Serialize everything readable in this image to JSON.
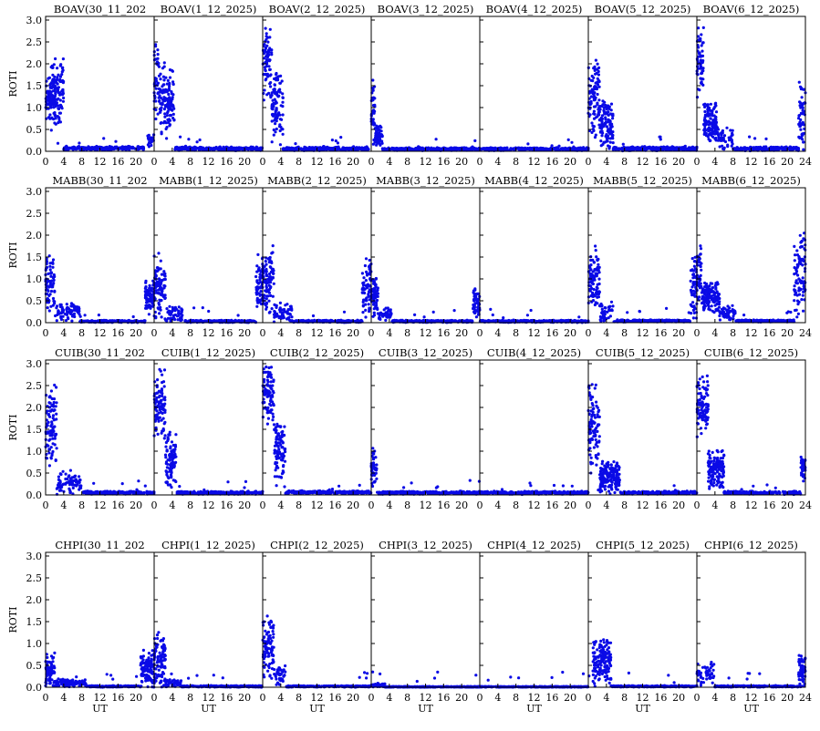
{
  "figure": {
    "ylabel": "ROTI",
    "xlabel": "UT",
    "marker_color": "#0a0ae6",
    "axis_color": "#000000"
  },
  "chart_data": {
    "type": "scatter",
    "xlim": [
      0,
      24
    ],
    "ylim": [
      0,
      3
    ],
    "x_ticks": [
      0,
      4,
      8,
      12,
      16,
      20,
      24
    ],
    "y_ticks": [
      0.0,
      0.5,
      1.0,
      1.5,
      2.0,
      2.5,
      3.0
    ],
    "y_tick_labels": [
      "0.0",
      "0.5",
      "1.0",
      "1.5",
      "2.0",
      "2.5",
      "3.0"
    ],
    "rows": [
      {
        "station": "BOAV",
        "panels": [
          {
            "title": "BOAV(30_11_202",
            "pattern": [
              [
                0.0,
                2.2,
                1.2,
                0.6
              ],
              [
                1.2,
                4.0,
                1.3,
                0.9
              ],
              [
                4.0,
                22.0,
                0.07,
                0.05
              ],
              [
                22.5,
                24.0,
                0.2,
                0.2
              ]
            ]
          },
          {
            "title": "BOAV(1_12_2025)",
            "pattern": [
              [
                0.0,
                1.0,
                1.6,
                1.0
              ],
              [
                1.0,
                4.5,
                1.2,
                0.9
              ],
              [
                4.5,
                24.0,
                0.06,
                0.05
              ]
            ]
          },
          {
            "title": "BOAV(2_12_2025)",
            "pattern": [
              [
                0.0,
                2.0,
                2.0,
                0.9
              ],
              [
                2.0,
                4.5,
                1.0,
                0.9
              ],
              [
                4.5,
                23.5,
                0.06,
                0.05
              ]
            ]
          },
          {
            "title": "BOAV(3_12_2025)",
            "pattern": [
              [
                0.0,
                0.8,
                1.1,
                0.7
              ],
              [
                0.8,
                2.5,
                0.35,
                0.3
              ],
              [
                2.5,
                24.0,
                0.05,
                0.04
              ]
            ]
          },
          {
            "title": "BOAV(4_12_2025)",
            "pattern": [
              [
                0.0,
                24.0,
                0.05,
                0.04
              ]
            ]
          },
          {
            "title": "BOAV(5_12_2025)",
            "pattern": [
              [
                0.0,
                2.5,
                1.2,
                1.0
              ],
              [
                2.5,
                5.5,
                0.6,
                0.6
              ],
              [
                5.5,
                24.0,
                0.06,
                0.05
              ]
            ]
          },
          {
            "title": "BOAV(6_12_2025)",
            "pattern": [
              [
                0.0,
                1.5,
                2.0,
                0.9
              ],
              [
                1.5,
                4.5,
                0.7,
                0.5
              ],
              [
                4.5,
                8.0,
                0.3,
                0.3
              ],
              [
                8.0,
                22.5,
                0.06,
                0.05
              ],
              [
                22.5,
                24.0,
                0.8,
                0.9
              ]
            ]
          }
        ]
      },
      {
        "station": "MABB",
        "panels": [
          {
            "title": "MABB(30_11_202",
            "pattern": [
              [
                0.0,
                2.0,
                0.9,
                0.7
              ],
              [
                2.0,
                7.5,
                0.25,
                0.25
              ],
              [
                7.5,
                22.0,
                0.03,
                0.03
              ],
              [
                22.0,
                24.0,
                0.6,
                0.4
              ]
            ]
          },
          {
            "title": "MABB(1_12_2025)",
            "pattern": [
              [
                0.0,
                2.5,
                0.8,
                0.8
              ],
              [
                2.5,
                6.5,
                0.2,
                0.2
              ],
              [
                6.5,
                22.5,
                0.03,
                0.03
              ],
              [
                22.5,
                24.0,
                0.9,
                0.7
              ]
            ]
          },
          {
            "title": "MABB(2_12_2025)",
            "pattern": [
              [
                0.0,
                2.5,
                1.0,
                0.8
              ],
              [
                2.5,
                6.5,
                0.25,
                0.25
              ],
              [
                6.5,
                22.0,
                0.03,
                0.03
              ],
              [
                22.0,
                24.0,
                0.8,
                0.7
              ]
            ]
          },
          {
            "title": "MABB(3_12_2025)",
            "pattern": [
              [
                0.0,
                1.5,
                0.6,
                0.5
              ],
              [
                1.5,
                4.5,
                0.2,
                0.15
              ],
              [
                4.5,
                22.5,
                0.03,
                0.03
              ],
              [
                22.5,
                24.0,
                0.5,
                0.4
              ]
            ]
          },
          {
            "title": "MABB(4_12_2025)",
            "pattern": [
              [
                0.0,
                24.0,
                0.03,
                0.03
              ]
            ]
          },
          {
            "title": "MABB(5_12_2025)",
            "pattern": [
              [
                0.0,
                2.5,
                1.0,
                0.8
              ],
              [
                2.5,
                5.5,
                0.3,
                0.3
              ],
              [
                5.5,
                22.5,
                0.04,
                0.03
              ],
              [
                22.5,
                24.0,
                0.8,
                0.8
              ]
            ]
          },
          {
            "title": "MABB(6_12_2025)",
            "pattern": [
              [
                0.0,
                1.0,
                1.2,
                0.8
              ],
              [
                1.0,
                5.0,
                0.6,
                0.4
              ],
              [
                5.0,
                8.5,
                0.2,
                0.2
              ],
              [
                8.5,
                21.5,
                0.04,
                0.03
              ],
              [
                21.5,
                24.0,
                1.2,
                1.2
              ]
            ]
          }
        ]
      },
      {
        "station": "CUIB",
        "panels": [
          {
            "title": "CUIB(30_11_202",
            "pattern": [
              [
                0.0,
                2.5,
                1.6,
                1.0
              ],
              [
                2.5,
                8.0,
                0.3,
                0.3
              ],
              [
                8.0,
                24.0,
                0.05,
                0.04
              ]
            ]
          },
          {
            "title": "CUIB(1_12_2025)",
            "pattern": [
              [
                0.0,
                2.5,
                2.0,
                0.9
              ],
              [
                2.5,
                5.0,
                0.8,
                0.7
              ],
              [
                5.0,
                24.0,
                0.05,
                0.04
              ]
            ]
          },
          {
            "title": "CUIB(2_12_2025)",
            "pattern": [
              [
                0.0,
                2.5,
                2.3,
                0.7
              ],
              [
                2.5,
                5.0,
                1.0,
                0.8
              ],
              [
                5.0,
                24.0,
                0.06,
                0.04
              ]
            ]
          },
          {
            "title": "CUIB(3_12_2025)",
            "pattern": [
              [
                0.0,
                1.2,
                0.6,
                0.5
              ],
              [
                1.2,
                24.0,
                0.05,
                0.04
              ]
            ]
          },
          {
            "title": "CUIB(4_12_2025)",
            "pattern": [
              [
                0.0,
                24.0,
                0.05,
                0.04
              ]
            ]
          },
          {
            "title": "CUIB(5_12_2025)",
            "pattern": [
              [
                0.0,
                2.5,
                1.5,
                1.1
              ],
              [
                2.5,
                7.0,
                0.4,
                0.4
              ],
              [
                7.0,
                24.0,
                0.05,
                0.04
              ]
            ]
          },
          {
            "title": "CUIB(6_12_2025)",
            "pattern": [
              [
                0.0,
                2.5,
                2.0,
                0.8
              ],
              [
                2.5,
                6.0,
                0.6,
                0.5
              ],
              [
                6.0,
                23.0,
                0.05,
                0.04
              ],
              [
                23.0,
                24.0,
                0.6,
                0.3
              ]
            ]
          }
        ]
      },
      {
        "station": "CHPI",
        "panels": [
          {
            "title": "CHPI(30_11_202",
            "pattern": [
              [
                0.0,
                2.0,
                0.4,
                0.4
              ],
              [
                2.0,
                9.0,
                0.1,
                0.1
              ],
              [
                9.0,
                21.0,
                0.02,
                0.02
              ],
              [
                21.0,
                24.0,
                0.4,
                0.5
              ]
            ]
          },
          {
            "title": "CHPI(1_12_2025)",
            "pattern": [
              [
                0.0,
                2.5,
                0.6,
                0.7
              ],
              [
                2.5,
                6.0,
                0.1,
                0.1
              ],
              [
                6.0,
                24.0,
                0.02,
                0.02
              ]
            ]
          },
          {
            "title": "CHPI(2_12_2025)",
            "pattern": [
              [
                0.0,
                2.5,
                0.9,
                0.8
              ],
              [
                2.5,
                5.0,
                0.3,
                0.3
              ],
              [
                5.0,
                24.0,
                0.02,
                0.02
              ]
            ]
          },
          {
            "title": "CHPI(3_12_2025)",
            "pattern": [
              [
                0.0,
                3.0,
                0.05,
                0.05
              ],
              [
                3.0,
                24.0,
                0.01,
                0.01
              ]
            ]
          },
          {
            "title": "CHPI(4_12_2025)",
            "pattern": [
              [
                0.0,
                24.0,
                0.01,
                0.01
              ]
            ]
          },
          {
            "title": "CHPI(5_12_2025)",
            "pattern": [
              [
                1.0,
                5.0,
                0.6,
                0.6
              ],
              [
                5.0,
                24.0,
                0.02,
                0.02
              ]
            ]
          },
          {
            "title": "CHPI(6_12_2025)",
            "pattern": [
              [
                0.0,
                4.0,
                0.3,
                0.3
              ],
              [
                4.0,
                22.5,
                0.02,
                0.02
              ],
              [
                22.5,
                24.0,
                0.4,
                0.5
              ]
            ]
          }
        ]
      }
    ]
  }
}
